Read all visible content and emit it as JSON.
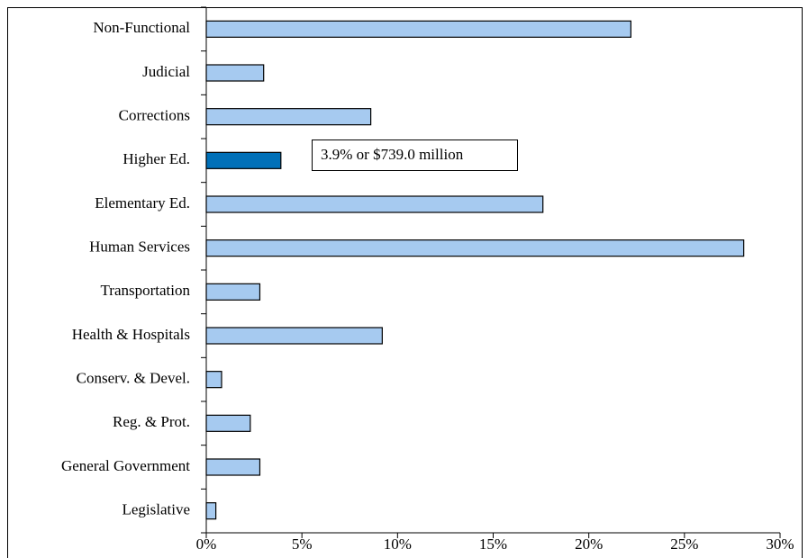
{
  "chart_data": {
    "type": "bar",
    "orientation": "horizontal",
    "categories": [
      "Non-Functional",
      "Judicial",
      "Corrections",
      "Higher Ed.",
      "Elementary Ed.",
      "Human Services",
      "Transportation",
      "Health & Hospitals",
      "Conserv. & Devel.",
      "Reg. & Prot.",
      "General Government",
      "Legislative"
    ],
    "values": [
      22.2,
      3.0,
      8.6,
      3.9,
      17.6,
      28.1,
      2.8,
      9.2,
      0.8,
      2.3,
      2.8,
      0.5
    ],
    "colors": [
      "#a6caf0",
      "#a6caf0",
      "#a6caf0",
      "#0070b8",
      "#a6caf0",
      "#a6caf0",
      "#a6caf0",
      "#a6caf0",
      "#a6caf0",
      "#a6caf0",
      "#a6caf0",
      "#a6caf0"
    ],
    "xlim": [
      0,
      30
    ],
    "xticks": [
      {
        "value": 0,
        "label": "0%"
      },
      {
        "value": 5,
        "label": "5%"
      },
      {
        "value": 10,
        "label": "10%"
      },
      {
        "value": 15,
        "label": "15%"
      },
      {
        "value": 20,
        "label": "20%"
      },
      {
        "value": 25,
        "label": "25%"
      },
      {
        "value": 30,
        "label": "30%"
      }
    ],
    "annotation": "3.9% or $739.0 million"
  }
}
